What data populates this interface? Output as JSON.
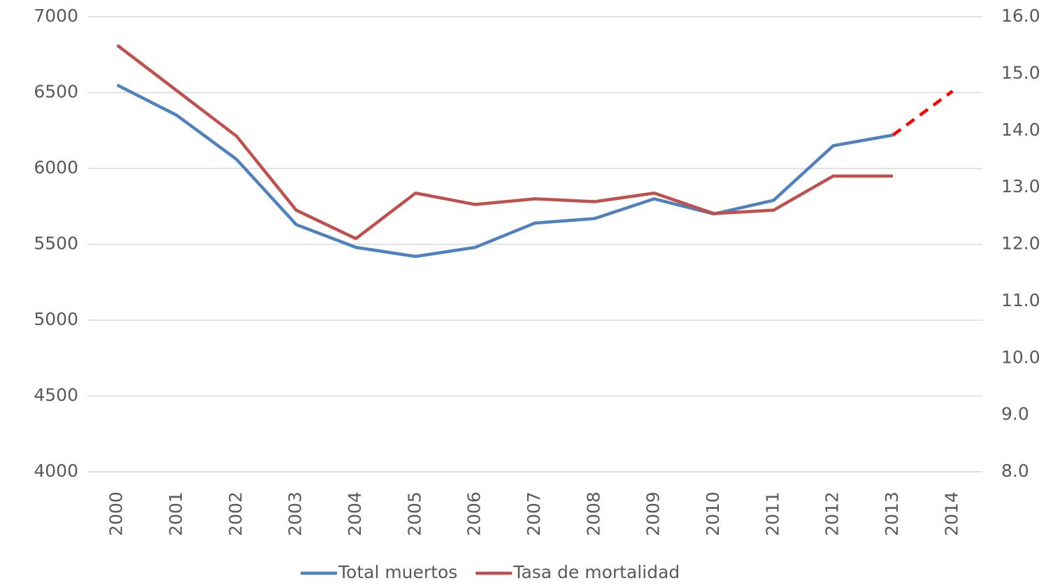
{
  "chart_data": {
    "type": "line",
    "categories": [
      "2000",
      "2001",
      "2002",
      "2003",
      "2004",
      "2005",
      "2006",
      "2007",
      "2008",
      "2009",
      "2010",
      "2011",
      "2012",
      "2013",
      "2014"
    ],
    "series": [
      {
        "name": "Total muertos",
        "color": "#4f81bd",
        "values": [
          6550,
          6350,
          6060,
          5630,
          5480,
          5420,
          5480,
          5640,
          5670,
          5800,
          5700,
          5790,
          6150,
          6220,
          null
        ]
      },
      {
        "name": "Tasa de mortalidad",
        "color": "#c0504d",
        "axis": "y2",
        "values": [
          15.5,
          14.7,
          13.9,
          12.6,
          12.1,
          12.9,
          12.7,
          12.8,
          12.75,
          12.9,
          12.54,
          12.6,
          13.2,
          13.2,
          null
        ]
      },
      {
        "color": "#ff0000",
        "dashed": true,
        "values": [
          null,
          null,
          null,
          null,
          null,
          null,
          null,
          null,
          null,
          null,
          null,
          null,
          null,
          6220,
          6510
        ]
      }
    ],
    "ylim": [
      4000,
      7000
    ],
    "yticks": [
      4000,
      4500,
      5000,
      5500,
      6000,
      6500,
      7000
    ],
    "y2lim": [
      8,
      16
    ],
    "y2ticks": [
      {
        "value": 8,
        "label": "8.0"
      },
      {
        "value": 9,
        "label": "9.0"
      },
      {
        "value": 10,
        "label": "10.0"
      },
      {
        "value": 11,
        "label": "11.0"
      },
      {
        "value": 12,
        "label": "12.0"
      },
      {
        "value": 13,
        "label": "13.0"
      },
      {
        "value": 14,
        "label": "14.0"
      },
      {
        "value": 15,
        "label": "15.0"
      },
      {
        "value": 16,
        "label": "16.0"
      }
    ],
    "grid": true,
    "legend": "bottom"
  }
}
